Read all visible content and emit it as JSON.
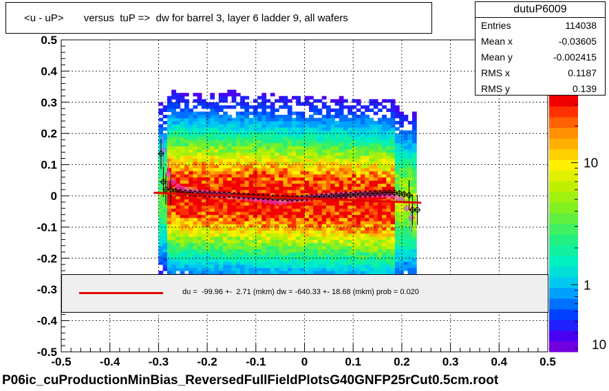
{
  "title": "<u - uP>       versus  tuP =>  dw for barrel 3, layer 6 ladder 9, all wafers",
  "stats": {
    "name": "dutuP6009",
    "rows": [
      {
        "key": "Entries",
        "value": "114038"
      },
      {
        "key": "Mean x",
        "value": "-0.03605"
      },
      {
        "key": "Mean y",
        "value": "-0.002415"
      },
      {
        "key": "RMS x",
        "value": "0.1187"
      },
      {
        "key": "RMS y",
        "value": "0.139"
      }
    ]
  },
  "fit": {
    "text": "du =  -99.96 +-  2.71 (mkm) dw = -640.33 +- 18.68 (mkm) prob = 0.020",
    "line_color": "#e00000"
  },
  "footer": "P06ic_cuProductionMinBias_ReversedFullFieldPlotsG40GNFP25rCut0.5cm.root",
  "chart_data": {
    "type": "heatmap",
    "xlim": [
      -0.5,
      0.5
    ],
    "ylim": [
      -0.5,
      0.5
    ],
    "xticks": [
      "-0.5",
      "-0.4",
      "-0.3",
      "-0.2",
      "-0.1",
      "0",
      "0.1",
      "0.2",
      "0.3",
      "0.4",
      "0.5"
    ],
    "yticks": [
      "-0.5",
      "-0.4",
      "-0.3",
      "-0.2",
      "-0.1",
      "0",
      "0.1",
      "0.2",
      "0.3",
      "0.4",
      "0.5"
    ],
    "grid": true,
    "colorbar": {
      "scale": "log",
      "ticks": [
        "1",
        "10"
      ],
      "partial_tick": "10",
      "colors": [
        "#7000e0",
        "#4a00f0",
        "#2020ff",
        "#0040ff",
        "#0070ff",
        "#00a0ff",
        "#00c8f0",
        "#00e0d8",
        "#00f0c0",
        "#10f0a0",
        "#20f080",
        "#40f060",
        "#60f040",
        "#80f020",
        "#a0f010",
        "#c0f000",
        "#e0f000",
        "#fff000",
        "#ffd000",
        "#ffb000",
        "#ff9000",
        "#ff6000",
        "#ff3000",
        "#f00000"
      ]
    },
    "fit_line": {
      "x": [
        -0.31,
        0.24
      ],
      "y": [
        0.01,
        -0.022
      ],
      "color": "#e00000"
    },
    "profile_black": {
      "x": [
        -0.295,
        -0.29,
        -0.285,
        -0.275,
        -0.265,
        -0.255,
        -0.245,
        -0.235,
        -0.225,
        -0.215,
        -0.205,
        -0.195,
        -0.185,
        -0.175,
        -0.165,
        -0.155,
        -0.145,
        -0.135,
        -0.125,
        -0.115,
        -0.105,
        -0.095,
        -0.085,
        -0.075,
        -0.065,
        -0.055,
        -0.045,
        -0.035,
        -0.025,
        -0.015,
        -0.005,
        0.005,
        0.015,
        0.025,
        0.035,
        0.045,
        0.055,
        0.065,
        0.075,
        0.085,
        0.095,
        0.105,
        0.115,
        0.125,
        0.135,
        0.145,
        0.155,
        0.165,
        0.175,
        0.185,
        0.195,
        0.205,
        0.215,
        0.222,
        0.232
      ],
      "y": [
        0.135,
        0.045,
        0.02,
        0.02,
        0.015,
        0.012,
        0.01,
        0.01,
        0.008,
        0.008,
        0.006,
        0.006,
        0.005,
        0.004,
        0.004,
        0.003,
        0.002,
        0.001,
        0.0,
        -0.001,
        -0.002,
        -0.003,
        -0.004,
        -0.005,
        -0.006,
        -0.007,
        -0.007,
        -0.008,
        -0.008,
        -0.008,
        -0.007,
        -0.006,
        -0.005,
        -0.004,
        -0.003,
        -0.002,
        -0.001,
        0.0,
        0.001,
        0.002,
        0.003,
        0.004,
        0.005,
        0.006,
        0.007,
        0.008,
        0.009,
        0.01,
        0.01,
        0.01,
        0.008,
        0.005,
        0.002,
        -0.045,
        -0.045
      ]
    },
    "profile_magenta": {
      "x": [
        -0.29,
        -0.28,
        -0.27,
        -0.26,
        -0.25,
        -0.24,
        -0.23,
        -0.22,
        -0.21,
        -0.2,
        -0.19,
        -0.18,
        -0.17,
        -0.16,
        -0.15,
        -0.14,
        -0.13,
        -0.12,
        -0.11,
        -0.1,
        -0.09,
        -0.08,
        -0.07,
        -0.06,
        -0.05,
        -0.04,
        -0.03,
        -0.02,
        -0.01,
        0.0,
        0.01,
        0.02,
        0.03,
        0.04,
        0.05,
        0.06,
        0.07,
        0.08,
        0.09,
        0.1,
        0.11,
        0.12,
        0.13,
        0.14,
        0.15,
        0.16,
        0.17,
        0.18,
        0.19,
        0.2,
        0.21,
        0.22
      ],
      "y": [
        0.145,
        0.07,
        0.045,
        0.03,
        0.022,
        0.018,
        0.015,
        0.012,
        0.01,
        0.008,
        0.006,
        0.005,
        0.003,
        0.002,
        0.0,
        -0.002,
        -0.004,
        -0.006,
        -0.008,
        -0.01,
        -0.012,
        -0.015,
        -0.017,
        -0.02,
        -0.02,
        -0.018,
        -0.015,
        -0.012,
        -0.01,
        -0.008,
        -0.006,
        -0.004,
        -0.002,
        0.0,
        0.0,
        0.001,
        0.002,
        0.003,
        0.003,
        0.004,
        0.004,
        0.004,
        0.004,
        0.004,
        0.004,
        0.003,
        0.002,
        0.0,
        -0.005,
        -0.012,
        -0.04,
        -0.07
      ]
    }
  }
}
